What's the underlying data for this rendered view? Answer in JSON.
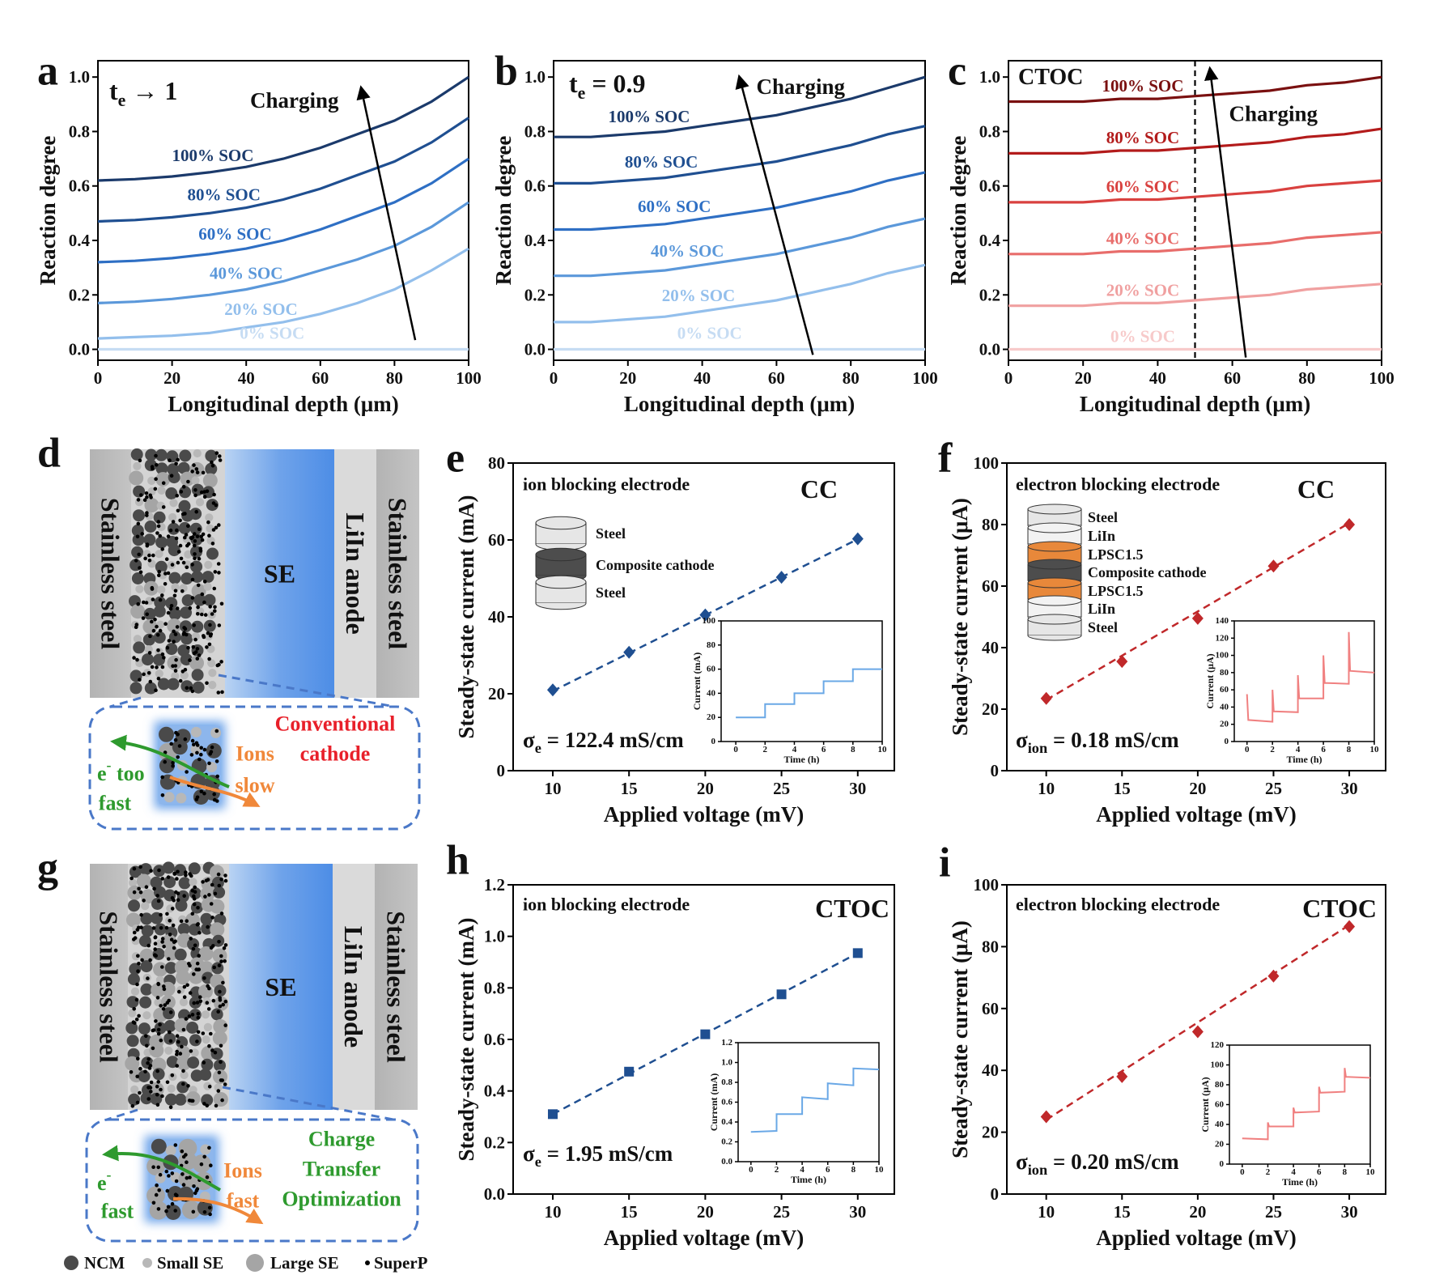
{
  "chart_data": [
    {
      "panel": "a",
      "type": "line",
      "annotation": {
        "t": "t",
        "sub": "e",
        "tail": " → 1"
      },
      "arrow_label": "Charging",
      "xlabel": "Longitudinal depth (μm)",
      "ylabel": "Reaction degree",
      "xlim": [
        0,
        100
      ],
      "ylim": [
        -0.04,
        1.06
      ],
      "xticks": [
        0,
        20,
        40,
        60,
        80,
        100
      ],
      "yticks": [
        {
          "value": 0,
          "label": "0.0"
        },
        0.2,
        0.4,
        0.6,
        0.8,
        {
          "value": 1,
          "label": "1.0"
        }
      ],
      "x": [
        0,
        10,
        20,
        30,
        40,
        50,
        60,
        70,
        80,
        90,
        100
      ],
      "series": [
        {
          "name": "100% SOC",
          "color": "#1b3a6b",
          "values": [
            0.62,
            0.625,
            0.635,
            0.65,
            0.67,
            0.7,
            0.74,
            0.79,
            0.84,
            0.91,
            1.0
          ]
        },
        {
          "name": "80% SOC",
          "color": "#1f4f91",
          "values": [
            0.47,
            0.475,
            0.485,
            0.5,
            0.52,
            0.55,
            0.59,
            0.64,
            0.69,
            0.76,
            0.85
          ]
        },
        {
          "name": "60% SOC",
          "color": "#2e6fc4",
          "values": [
            0.32,
            0.325,
            0.335,
            0.35,
            0.37,
            0.4,
            0.44,
            0.49,
            0.54,
            0.61,
            0.7
          ]
        },
        {
          "name": "40% SOC",
          "color": "#5b98da",
          "values": [
            0.17,
            0.175,
            0.185,
            0.2,
            0.22,
            0.25,
            0.29,
            0.33,
            0.38,
            0.45,
            0.54
          ]
        },
        {
          "name": "20% SOC",
          "color": "#93bfec",
          "values": [
            0.04,
            0.045,
            0.05,
            0.06,
            0.08,
            0.1,
            0.13,
            0.17,
            0.22,
            0.29,
            0.37
          ]
        },
        {
          "name": "0% SOC",
          "color": "#c6dcf3",
          "values": [
            0,
            0,
            0,
            0,
            0,
            0,
            0,
            0,
            0,
            0,
            0
          ]
        }
      ]
    },
    {
      "panel": "b",
      "type": "line",
      "annotation": {
        "t": "t",
        "sub": "e",
        "tail": " = 0.9"
      },
      "arrow_label": "Charging",
      "xlabel": "Longitudinal depth (μm)",
      "ylabel": "Reaction degree",
      "xlim": [
        0,
        100
      ],
      "ylim": [
        -0.04,
        1.06
      ],
      "xticks": [
        0,
        20,
        40,
        60,
        80,
        100
      ],
      "yticks": [
        {
          "value": 0,
          "label": "0.0"
        },
        0.2,
        0.4,
        0.6,
        0.8,
        {
          "value": 1,
          "label": "1.0"
        }
      ],
      "x": [
        0,
        10,
        20,
        30,
        40,
        50,
        60,
        70,
        80,
        90,
        100
      ],
      "series": [
        {
          "name": "100% SOC",
          "color": "#1b3a6b",
          "values": [
            0.78,
            0.78,
            0.79,
            0.8,
            0.82,
            0.84,
            0.86,
            0.89,
            0.92,
            0.96,
            1.0
          ]
        },
        {
          "name": "80% SOC",
          "color": "#1f4f91",
          "values": [
            0.61,
            0.61,
            0.62,
            0.63,
            0.65,
            0.67,
            0.69,
            0.72,
            0.75,
            0.79,
            0.82
          ]
        },
        {
          "name": "60% SOC",
          "color": "#2e6fc4",
          "values": [
            0.44,
            0.44,
            0.45,
            0.46,
            0.48,
            0.5,
            0.52,
            0.55,
            0.58,
            0.62,
            0.65
          ]
        },
        {
          "name": "40% SOC",
          "color": "#5b98da",
          "values": [
            0.27,
            0.27,
            0.28,
            0.29,
            0.31,
            0.33,
            0.35,
            0.38,
            0.41,
            0.45,
            0.48
          ]
        },
        {
          "name": "20% SOC",
          "color": "#93bfec",
          "values": [
            0.1,
            0.1,
            0.11,
            0.12,
            0.14,
            0.16,
            0.18,
            0.21,
            0.24,
            0.28,
            0.31
          ]
        },
        {
          "name": "0% SOC",
          "color": "#c6dcf3",
          "values": [
            0,
            0,
            0,
            0,
            0,
            0,
            0,
            0,
            0,
            0,
            0
          ]
        }
      ]
    },
    {
      "panel": "c",
      "type": "line",
      "annotation": {
        "t": "CTOC"
      },
      "arrow_label": "Charging",
      "vline": 50,
      "xlabel": "Longitudinal depth (μm)",
      "ylabel": "Reaction degree",
      "xlim": [
        0,
        100
      ],
      "ylim": [
        -0.04,
        1.06
      ],
      "xticks": [
        0,
        20,
        40,
        60,
        80,
        100
      ],
      "yticks": [
        {
          "value": 0,
          "label": "0.0"
        },
        0.2,
        0.4,
        0.6,
        0.8,
        {
          "value": 1,
          "label": "1.0"
        }
      ],
      "x": [
        0,
        10,
        20,
        30,
        40,
        50,
        60,
        70,
        80,
        90,
        100
      ],
      "series": [
        {
          "name": "100% SOC",
          "color": "#7a1010",
          "values": [
            0.91,
            0.91,
            0.91,
            0.92,
            0.92,
            0.93,
            0.94,
            0.95,
            0.97,
            0.98,
            1.0
          ]
        },
        {
          "name": "80% SOC",
          "color": "#b31b1b",
          "values": [
            0.72,
            0.72,
            0.72,
            0.73,
            0.73,
            0.74,
            0.75,
            0.76,
            0.78,
            0.79,
            0.81
          ]
        },
        {
          "name": "60% SOC",
          "color": "#d9413f",
          "values": [
            0.54,
            0.54,
            0.54,
            0.55,
            0.55,
            0.56,
            0.57,
            0.58,
            0.6,
            0.61,
            0.62
          ]
        },
        {
          "name": "40% SOC",
          "color": "#e86d6b",
          "values": [
            0.35,
            0.35,
            0.35,
            0.36,
            0.36,
            0.37,
            0.38,
            0.39,
            0.41,
            0.42,
            0.43
          ]
        },
        {
          "name": "20% SOC",
          "color": "#f0a0a0",
          "values": [
            0.16,
            0.16,
            0.16,
            0.17,
            0.17,
            0.18,
            0.19,
            0.2,
            0.22,
            0.23,
            0.24
          ]
        },
        {
          "name": "0% SOC",
          "color": "#f7caca",
          "values": [
            0,
            0,
            0,
            0,
            0,
            0,
            0,
            0,
            0,
            0,
            0
          ]
        }
      ]
    },
    {
      "panel": "e",
      "type": "scatter",
      "marker": "diamond",
      "title": "ion blocking  electrode",
      "label": "CC",
      "sigma": {
        "t": "σ",
        "sub": "e",
        "tail": " = 122.4 mS/cm"
      },
      "stack": [
        {
          "label": "Steel",
          "color": "#e6e6e6"
        },
        {
          "label": "Composite cathode",
          "color": "#4d4d4d"
        },
        {
          "label": "Steel",
          "color": "#e6e6e6"
        }
      ],
      "xlabel": "Applied voltage (mV)",
      "ylabel": "Steady-state current (mA)",
      "xlim": [
        7.4,
        32.4
      ],
      "ylim": [
        0,
        80
      ],
      "xticks": [
        10,
        15,
        20,
        25,
        30
      ],
      "yticks": [
        0,
        20,
        40,
        60,
        80
      ],
      "x": [
        10,
        15,
        20,
        25,
        30
      ],
      "series": [
        {
          "color": "#1f4f91",
          "values": [
            21,
            30.8,
            40.5,
            50.3,
            60.3
          ]
        }
      ],
      "fit": {
        "x": [
          10,
          30
        ],
        "values": [
          20.7,
          60.2
        ]
      },
      "inset": {
        "type": "line",
        "xlabel": "Time (h)",
        "ylabel": "Current (mA)",
        "color": "#6aa8e6",
        "xlim": [
          -1,
          10
        ],
        "ylim": [
          0,
          100
        ],
        "xticks": [
          0,
          2,
          4,
          6,
          8,
          10
        ],
        "yticks": [
          0,
          20,
          40,
          60,
          80,
          100
        ],
        "x": [
          0,
          2,
          2,
          4,
          4,
          6,
          6,
          8,
          8,
          10
        ],
        "values": [
          20,
          20,
          31,
          31,
          40,
          40,
          50,
          50,
          60,
          60
        ]
      }
    },
    {
      "panel": "f",
      "type": "scatter",
      "marker": "diamond",
      "title": "electron blocking electrode",
      "label": "CC",
      "sigma": {
        "t": "σ",
        "sub": "ion",
        "tail": " = 0.18 mS/cm"
      },
      "stack": [
        {
          "label": "Steel",
          "color": "#e6e6e6"
        },
        {
          "label": "LiIn",
          "color": "#f2f2f2"
        },
        {
          "label": "LPSC1.5",
          "color": "#e8883a"
        },
        {
          "label": "Composite cathode",
          "color": "#4d4d4d"
        },
        {
          "label": "LPSC1.5",
          "color": "#e8883a"
        },
        {
          "label": "LiIn",
          "color": "#f2f2f2"
        },
        {
          "label": "Steel",
          "color": "#e6e6e6"
        }
      ],
      "xlabel": "Applied voltage (mV)",
      "ylabel": "Steady-state current (μA)",
      "xlim": [
        7.4,
        32.4
      ],
      "ylim": [
        0,
        100
      ],
      "xticks": [
        10,
        15,
        20,
        25,
        30
      ],
      "yticks": [
        0,
        20,
        40,
        60,
        80,
        100
      ],
      "x": [
        10,
        15,
        20,
        25,
        30
      ],
      "series": [
        {
          "color": "#c0282a",
          "values": [
            23.5,
            35.5,
            49.5,
            66.5,
            80
          ]
        }
      ],
      "fit": {
        "x": [
          10,
          30
        ],
        "values": [
          23,
          80.5
        ]
      },
      "inset": {
        "type": "line",
        "xlabel": "Time (h)",
        "ylabel": "Current (μA)",
        "color": "#f08080",
        "xlim": [
          -1,
          10
        ],
        "ylim": [
          0,
          140
        ],
        "xticks": [
          0,
          2,
          4,
          6,
          8,
          10
        ],
        "yticks": [
          0,
          20,
          40,
          60,
          80,
          100,
          120,
          140
        ],
        "x": [
          0,
          0.1,
          2,
          2,
          2.1,
          4,
          4,
          4.1,
          6,
          6,
          6.1,
          8,
          8,
          8.1,
          10
        ],
        "values": [
          55,
          25,
          23,
          60,
          35,
          34,
          77,
          50,
          50,
          100,
          68,
          67,
          127,
          82,
          80
        ]
      }
    },
    {
      "panel": "h",
      "type": "scatter",
      "marker": "square",
      "title": "ion blocking electrode",
      "label": "CTOC",
      "sigma": {
        "t": "σ",
        "sub": "e",
        "tail": " = 1.95 mS/cm"
      },
      "xlabel": "Applied voltage (mV)",
      "ylabel": "Steady-state current (mA)",
      "xlim": [
        7.4,
        32.4
      ],
      "ylim": [
        0,
        1.2
      ],
      "xticks": [
        10,
        15,
        20,
        25,
        30
      ],
      "yticks": [
        {
          "value": 0,
          "label": "0.0"
        },
        0.2,
        0.4,
        0.6,
        0.8,
        {
          "value": 1,
          "label": "1.0"
        },
        1.2
      ],
      "x": [
        10,
        15,
        20,
        25,
        30
      ],
      "series": [
        {
          "color": "#1f4f91",
          "values": [
            0.31,
            0.475,
            0.62,
            0.775,
            0.935
          ]
        }
      ],
      "fit": {
        "x": [
          10,
          30
        ],
        "values": [
          0.31,
          0.935
        ]
      },
      "inset": {
        "type": "line",
        "xlabel": "Time (h)",
        "ylabel": "Current (mA)",
        "color": "#6aa8e6",
        "xlim": [
          -1,
          10
        ],
        "ylim": [
          0,
          1.2
        ],
        "xticks": [
          0,
          2,
          4,
          6,
          8,
          10
        ],
        "yticks": [
          {
            "value": 0,
            "label": "0.0"
          },
          0.2,
          0.4,
          0.6,
          0.8,
          {
            "value": 1,
            "label": "1.0"
          },
          1.2
        ],
        "x": [
          0,
          2,
          2,
          4,
          4,
          6,
          6,
          8,
          8,
          10
        ],
        "values": [
          0.3,
          0.31,
          0.48,
          0.48,
          0.65,
          0.63,
          0.79,
          0.77,
          0.94,
          0.93
        ]
      }
    },
    {
      "panel": "i",
      "type": "scatter",
      "marker": "diamond",
      "title": "electron blocking electrode",
      "label": "CTOC",
      "sigma": {
        "t": "σ",
        "sub": "ion",
        "tail": " = 0.20 mS/cm"
      },
      "xlabel": "Applied voltage (mV)",
      "ylabel": "Steady-state current (μA)",
      "xlim": [
        7.4,
        32.4
      ],
      "ylim": [
        0,
        100
      ],
      "xticks": [
        10,
        15,
        20,
        25,
        30
      ],
      "yticks": [
        0,
        20,
        40,
        60,
        80,
        100
      ],
      "x": [
        10,
        15,
        20,
        25,
        30
      ],
      "series": [
        {
          "color": "#c0282a",
          "values": [
            25,
            38,
            52.5,
            70.5,
            86.5
          ]
        }
      ],
      "fit": {
        "x": [
          10,
          30
        ],
        "values": [
          24,
          87
        ]
      },
      "inset": {
        "type": "line",
        "xlabel": "Time (h)",
        "ylabel": "Current (μA)",
        "color": "#f08080",
        "xlim": [
          -1,
          10
        ],
        "ylim": [
          0,
          120
        ],
        "xticks": [
          0,
          2,
          4,
          6,
          8,
          10
        ],
        "yticks": [
          0,
          20,
          40,
          60,
          80,
          100,
          120
        ],
        "x": [
          0,
          2,
          2,
          2.1,
          4,
          4,
          4.1,
          6,
          6,
          6.1,
          8,
          8,
          8.1,
          10
        ],
        "values": [
          26,
          25,
          42,
          38,
          38,
          57,
          52,
          53,
          78,
          72,
          73,
          97,
          88,
          87
        ]
      }
    }
  ],
  "diagrams": [
    {
      "panel": "d",
      "steel_left": "Stainless  steel",
      "se": "SE",
      "anode": "LiIn anode",
      "steel_right": "Stainless steel",
      "callout": [
        "Conventional",
        "cathode"
      ],
      "callout_color": "#e8202a",
      "ions": [
        "Ions",
        "slow"
      ],
      "electron": {
        "e": "e",
        "sup": "-",
        "tail": " too",
        "line2": "fast"
      }
    },
    {
      "panel": "g",
      "steel_left": "Stainless  steel",
      "se": "SE",
      "anode": "LiIn anode",
      "steel_right": "Stainless steel",
      "callout": [
        "Charge",
        "Transfer",
        "Optimization"
      ],
      "callout_color": "#2e9a2e",
      "ions": [
        "Ions",
        "fast"
      ],
      "electron": {
        "e": "e",
        "sup": "-",
        "line2": "fast"
      }
    }
  ],
  "diagram_legend": [
    "NCM",
    "Small SE",
    "Large SE",
    "SuperP"
  ]
}
